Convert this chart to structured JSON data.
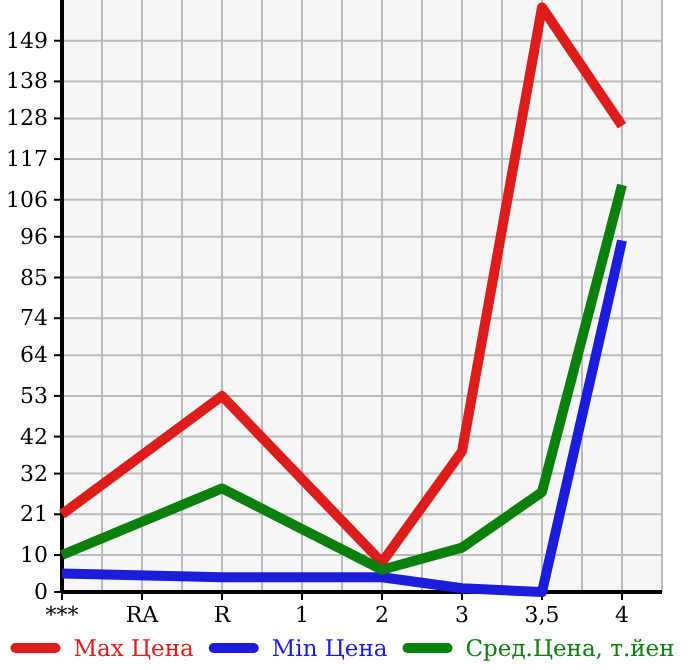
{
  "chart_data": {
    "type": "line",
    "categories": [
      "***",
      "RA",
      "R",
      "1",
      "2",
      "3",
      "3,5",
      "4"
    ],
    "series": [
      {
        "name": "Max Цена",
        "color": "#dd1c1c",
        "values": [
          21,
          null,
          53,
          null,
          8,
          38,
          158,
          126
        ]
      },
      {
        "name": "Min Цена",
        "color": "#1c1cdd",
        "values": [
          5,
          null,
          4,
          null,
          4,
          1,
          0,
          95
        ]
      },
      {
        "name": "Сред.Цена, т.йен",
        "color": "#0c800c",
        "values": [
          10,
          null,
          28,
          null,
          6,
          12,
          27,
          110
        ]
      }
    ],
    "ylim": [
      0,
      160
    ],
    "yticks": [
      0,
      10,
      21,
      32,
      42,
      53,
      64,
      74,
      85,
      96,
      106,
      117,
      128,
      138,
      149
    ],
    "grid": true,
    "legend": "bottom",
    "marker": "none",
    "line_style": "solid"
  }
}
